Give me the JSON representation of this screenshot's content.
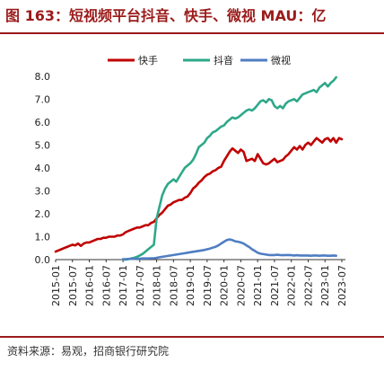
{
  "title": "图 163：短视频平台抖音、快手、微视 MAU：亿",
  "source": "资料来源：易观，招商银行研究院",
  "colors": {
    "accent": "#9b1b1b",
    "kuaishou": "#c00000",
    "douyin": "#2ea88a",
    "weishi": "#4f7ec2"
  },
  "chart_data": {
    "type": "line",
    "x_ticks": [
      "2015-01",
      "2015-07",
      "2016-01",
      "2016-07",
      "2017-01",
      "2017-07",
      "2018-01",
      "2018-07",
      "2019-01",
      "2019-07",
      "2020-01",
      "2020-07",
      "2021-01",
      "2021-07",
      "2022-01",
      "2022-07",
      "2023-01",
      "2023-07"
    ],
    "ylim": [
      0,
      8.5
    ],
    "yticks": [
      "0.0",
      "1.0",
      "2.0",
      "3.0",
      "4.0",
      "5.0",
      "6.0",
      "7.0",
      "8.0"
    ],
    "legend_position": "top",
    "grid": false,
    "x_start": "2015-01",
    "series": [
      {
        "name": "快手",
        "color": "#c00000",
        "start": "2015-01",
        "values": [
          0.35,
          0.4,
          0.45,
          0.5,
          0.55,
          0.6,
          0.65,
          0.62,
          0.7,
          0.6,
          0.7,
          0.75,
          0.75,
          0.8,
          0.85,
          0.9,
          0.9,
          0.95,
          0.95,
          1.0,
          1.0,
          1.0,
          1.05,
          1.05,
          1.1,
          1.2,
          1.25,
          1.3,
          1.35,
          1.4,
          1.4,
          1.45,
          1.5,
          1.5,
          1.6,
          1.65,
          1.8,
          1.95,
          2.05,
          2.2,
          2.35,
          2.4,
          2.5,
          2.55,
          2.6,
          2.6,
          2.7,
          2.75,
          2.9,
          3.1,
          3.2,
          3.35,
          3.45,
          3.6,
          3.7,
          3.75,
          3.85,
          3.9,
          4.0,
          4.05,
          4.3,
          4.5,
          4.7,
          4.85,
          4.75,
          4.65,
          4.8,
          4.7,
          4.3,
          4.35,
          4.4,
          4.3,
          4.6,
          4.4,
          4.2,
          4.15,
          4.2,
          4.3,
          4.4,
          4.25,
          4.3,
          4.35,
          4.5,
          4.6,
          4.75,
          4.9,
          4.8,
          4.95,
          4.8,
          5.0,
          5.1,
          5.0,
          5.15,
          5.3,
          5.2,
          5.1,
          5.25,
          5.3,
          5.15,
          5.3,
          5.1,
          5.3,
          5.25
        ]
      },
      {
        "name": "抖音",
        "color": "#2ea88a",
        "start": "2017-01",
        "values": [
          0.0,
          0.0,
          0.02,
          0.05,
          0.08,
          0.12,
          0.18,
          0.25,
          0.35,
          0.45,
          0.55,
          0.65,
          1.8,
          2.3,
          2.8,
          3.1,
          3.3,
          3.4,
          3.5,
          3.4,
          3.6,
          3.8,
          4.0,
          4.1,
          4.2,
          4.35,
          4.6,
          4.9,
          5.0,
          5.1,
          5.3,
          5.4,
          5.55,
          5.6,
          5.7,
          5.8,
          5.85,
          6.0,
          6.1,
          6.2,
          6.15,
          6.2,
          6.3,
          6.4,
          6.5,
          6.55,
          6.5,
          6.6,
          6.75,
          6.9,
          6.95,
          6.85,
          7.0,
          6.95,
          6.7,
          6.6,
          6.7,
          6.6,
          6.8,
          6.9,
          6.95,
          7.0,
          6.9,
          7.05,
          7.2,
          7.25,
          7.3,
          7.35,
          7.4,
          7.3,
          7.5,
          7.6,
          7.7,
          7.55,
          7.7,
          7.8,
          7.95
        ]
      },
      {
        "name": "微视",
        "color": "#4f7ec2",
        "start": "2017-01",
        "values": [
          0.02,
          0.02,
          0.03,
          0.03,
          0.03,
          0.04,
          0.04,
          0.05,
          0.05,
          0.05,
          0.06,
          0.06,
          0.08,
          0.1,
          0.12,
          0.14,
          0.16,
          0.18,
          0.2,
          0.22,
          0.24,
          0.26,
          0.28,
          0.3,
          0.32,
          0.34,
          0.36,
          0.38,
          0.4,
          0.42,
          0.45,
          0.48,
          0.52,
          0.56,
          0.62,
          0.7,
          0.78,
          0.85,
          0.88,
          0.85,
          0.8,
          0.78,
          0.75,
          0.7,
          0.62,
          0.55,
          0.45,
          0.38,
          0.3,
          0.26,
          0.24,
          0.22,
          0.2,
          0.2,
          0.2,
          0.21,
          0.2,
          0.19,
          0.2,
          0.2,
          0.19,
          0.18,
          0.19,
          0.18,
          0.18,
          0.18,
          0.18,
          0.17,
          0.18,
          0.18,
          0.17,
          0.18,
          0.18,
          0.17,
          0.17,
          0.18,
          0.17
        ]
      }
    ]
  }
}
